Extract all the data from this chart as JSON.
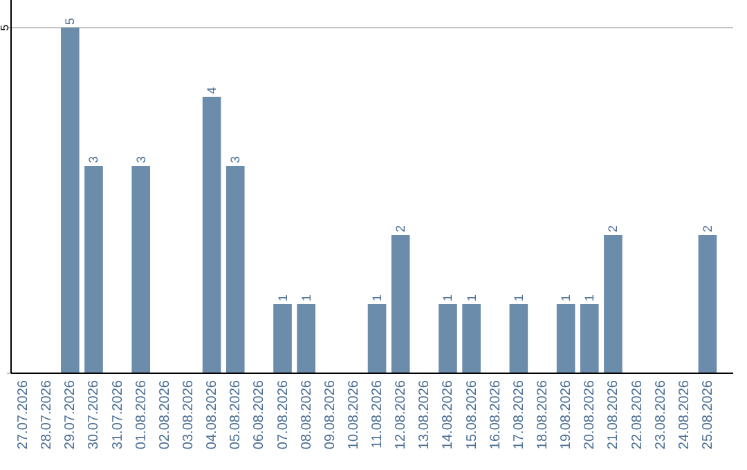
{
  "chart_data": {
    "type": "bar",
    "categories": [
      "27.07.2026",
      "28.07.2026",
      "29.07.2026",
      "30.07.2026",
      "31.07.2026",
      "01.08.2026",
      "02.08.2026",
      "03.08.2026",
      "04.08.2026",
      "05.08.2026",
      "06.08.2026",
      "07.08.2026",
      "08.08.2026",
      "09.08.2026",
      "10.08.2026",
      "11.08.2026",
      "12.08.2026",
      "13.08.2026",
      "14.08.2026",
      "15.08.2026",
      "16.08.2026",
      "17.08.2026",
      "18.08.2026",
      "19.08.2026",
      "20.08.2026",
      "21.08.2026",
      "22.08.2026",
      "23.08.2026",
      "24.08.2026",
      "25.08.2026"
    ],
    "values": [
      0,
      0,
      5,
      3,
      0,
      3,
      0,
      0,
      4,
      3,
      0,
      1,
      1,
      0,
      0,
      1,
      2,
      0,
      1,
      1,
      0,
      1,
      0,
      1,
      1,
      2,
      0,
      0,
      0,
      2
    ],
    "value_labels": [
      null,
      null,
      "5",
      "3",
      null,
      "3",
      null,
      null,
      "4",
      "3",
      null,
      "1",
      "1",
      null,
      null,
      "1",
      "2",
      null,
      "1",
      "1",
      null,
      "1",
      null,
      "1",
      "1",
      "2",
      null,
      null,
      null,
      "2"
    ],
    "color": "#6b8cab",
    "ylim": [
      0,
      5
    ],
    "yticks": [
      {
        "value": 0,
        "label": null
      },
      5
    ],
    "grid": "y"
  }
}
